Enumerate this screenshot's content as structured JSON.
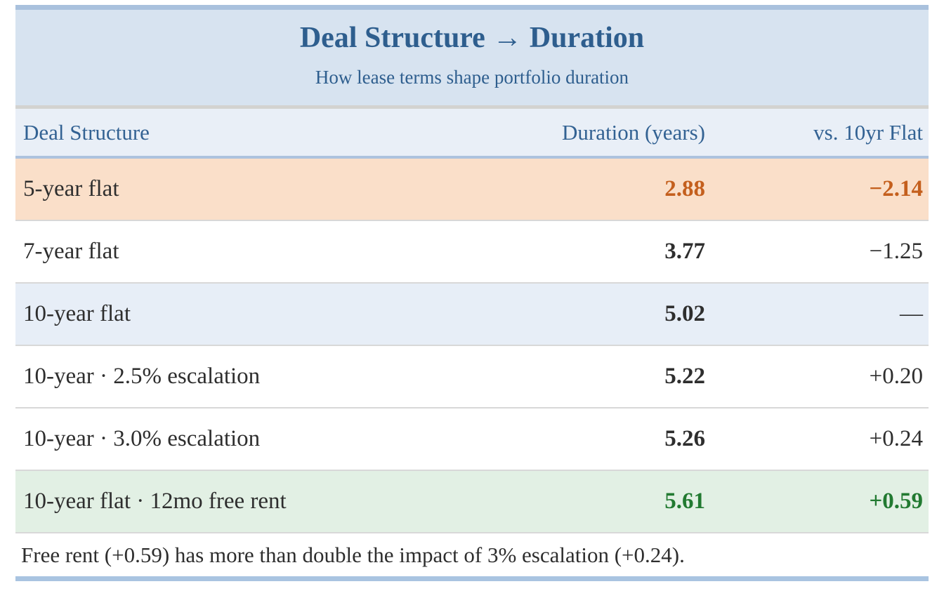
{
  "chart_data": {
    "type": "table",
    "title": "Deal Structure → Duration",
    "subtitle": "How lease terms shape portfolio duration",
    "columns": [
      "Deal Structure",
      "Duration (years)",
      "vs. 10yr Flat"
    ],
    "rows": [
      [
        "5-year flat",
        2.88,
        -2.14
      ],
      [
        "7-year flat",
        3.77,
        -1.25
      ],
      [
        "10-year flat",
        5.02,
        null
      ],
      [
        "10-year · 2.5% escalation",
        5.22,
        0.2
      ],
      [
        "10-year · 3.0% escalation",
        5.26,
        0.24
      ],
      [
        "10-year flat · 12mo free rent",
        5.61,
        0.59
      ]
    ],
    "note": "Free rent (+0.59) has more than double the impact of 3% escalation (+0.24).",
    "baseline_row": "10-year flat"
  },
  "header": {
    "title": "Deal Structure → Duration",
    "subtitle": "How lease terms shape portfolio duration"
  },
  "table": {
    "columns": {
      "deal": "Deal Structure",
      "duration": "Duration (years)",
      "vs": "vs. 10yr Flat"
    },
    "rows": [
      {
        "label": "5-year flat",
        "duration": "2.88",
        "vs": "−2.14"
      },
      {
        "label": "7-year flat",
        "duration": "3.77",
        "vs": "−1.25"
      },
      {
        "label": "10-year flat",
        "duration": "5.02",
        "vs": "—"
      },
      {
        "label": "10-year · 2.5% escalation",
        "duration": "5.22",
        "vs": "+0.20"
      },
      {
        "label": "10-year · 3.0% escalation",
        "duration": "5.26",
        "vs": "+0.24"
      },
      {
        "label": "10-year flat · 12mo free rent",
        "duration": "5.61",
        "vs": "+0.59"
      }
    ]
  },
  "footer": {
    "note": "Free rent (+0.59) has more than double the impact of 3% escalation (+0.24)."
  },
  "colors": {
    "accent_blue": "#2e5e8e",
    "header_text": "#336293",
    "negative_text": "#c45f1d",
    "positive_text": "#227a31",
    "negative_row_bg": "#fadfc9",
    "baseline_row_bg": "#e7eef7",
    "positive_row_bg": "#e2f0e4",
    "title_band_bg": "#d7e3f0",
    "header_row_bg": "#e9eff7",
    "top_bar": "#a9c1dd",
    "bottom_bar": "#a9c4e1"
  }
}
